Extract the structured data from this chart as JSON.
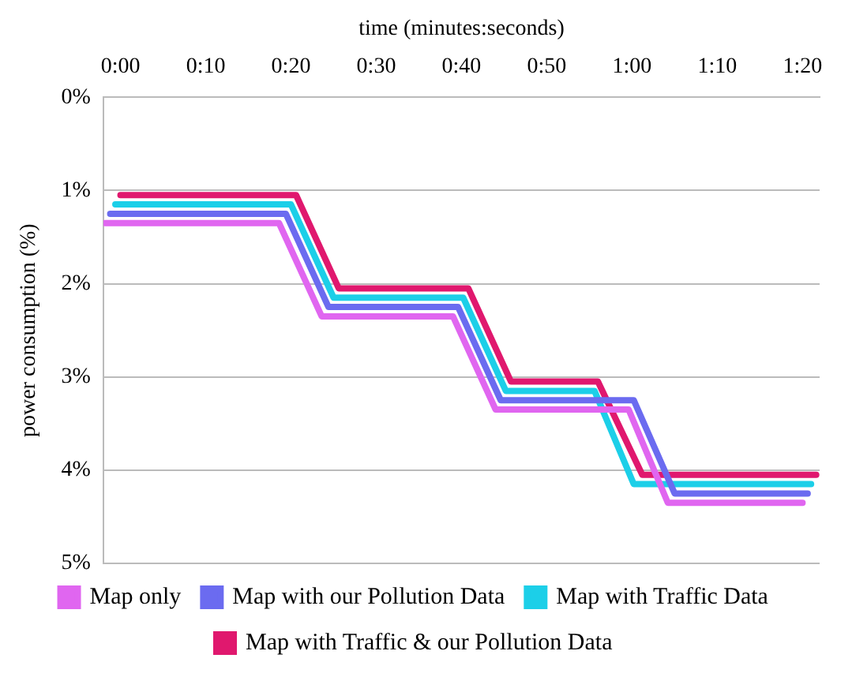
{
  "chart_data": {
    "type": "line",
    "xlabel": "time (minutes:seconds)",
    "ylabel": "power consumption (%)",
    "xlim": [
      -2,
      82
    ],
    "xticks": [
      {
        "value": 0,
        "label": "0:00"
      },
      {
        "value": 10,
        "label": "0:10"
      },
      {
        "value": 20,
        "label": "0:20"
      },
      {
        "value": 30,
        "label": "0:30"
      },
      {
        "value": 40,
        "label": "0:40"
      },
      {
        "value": 50,
        "label": "0:50"
      },
      {
        "value": 60,
        "label": "1:00"
      },
      {
        "value": 70,
        "label": "1:10"
      },
      {
        "value": 80,
        "label": "1:20"
      }
    ],
    "ylim": [
      5,
      0
    ],
    "yticks": [
      {
        "value": 0,
        "label": "0%"
      },
      {
        "value": 1,
        "label": "1%"
      },
      {
        "value": 2,
        "label": "2%"
      },
      {
        "value": 3,
        "label": "3%"
      },
      {
        "value": 4,
        "label": "4%"
      },
      {
        "value": 5,
        "label": "5%"
      }
    ],
    "grid": "y",
    "legend": "bottom",
    "marker": "none",
    "line_style": "solid",
    "series": [
      {
        "name": "Map only",
        "color": "#e066f0",
        "x": [
          -1.8,
          18.6,
          23.6,
          39,
          44,
          59.6,
          64.2,
          80
        ],
        "values": [
          1.35,
          1.35,
          2.35,
          2.35,
          3.35,
          3.35,
          4.35,
          4.35
        ]
      },
      {
        "name": "Map with our Pollution Data",
        "color": "#6b6bf0",
        "x": [
          -1.2,
          19.4,
          24.4,
          39.6,
          44.6,
          60.2,
          65,
          80.6
        ],
        "values": [
          1.25,
          1.25,
          2.25,
          2.25,
          3.25,
          3.25,
          4.25,
          4.25
        ]
      },
      {
        "name": "Map with Traffic Data",
        "color": "#1ccfe8",
        "x": [
          -0.6,
          20,
          25,
          40.2,
          45.2,
          55.6,
          60.2,
          81
        ],
        "values": [
          1.15,
          1.15,
          2.15,
          2.15,
          3.15,
          3.15,
          4.15,
          4.15
        ]
      },
      {
        "name": "Map with Traffic & our Pollution Data",
        "color": "#e0186e",
        "x": [
          0,
          20.6,
          25.6,
          40.8,
          45.8,
          56,
          61.2,
          81.6
        ],
        "values": [
          1.05,
          1.05,
          2.05,
          2.05,
          3.05,
          3.05,
          4.05,
          4.05
        ]
      }
    ]
  }
}
